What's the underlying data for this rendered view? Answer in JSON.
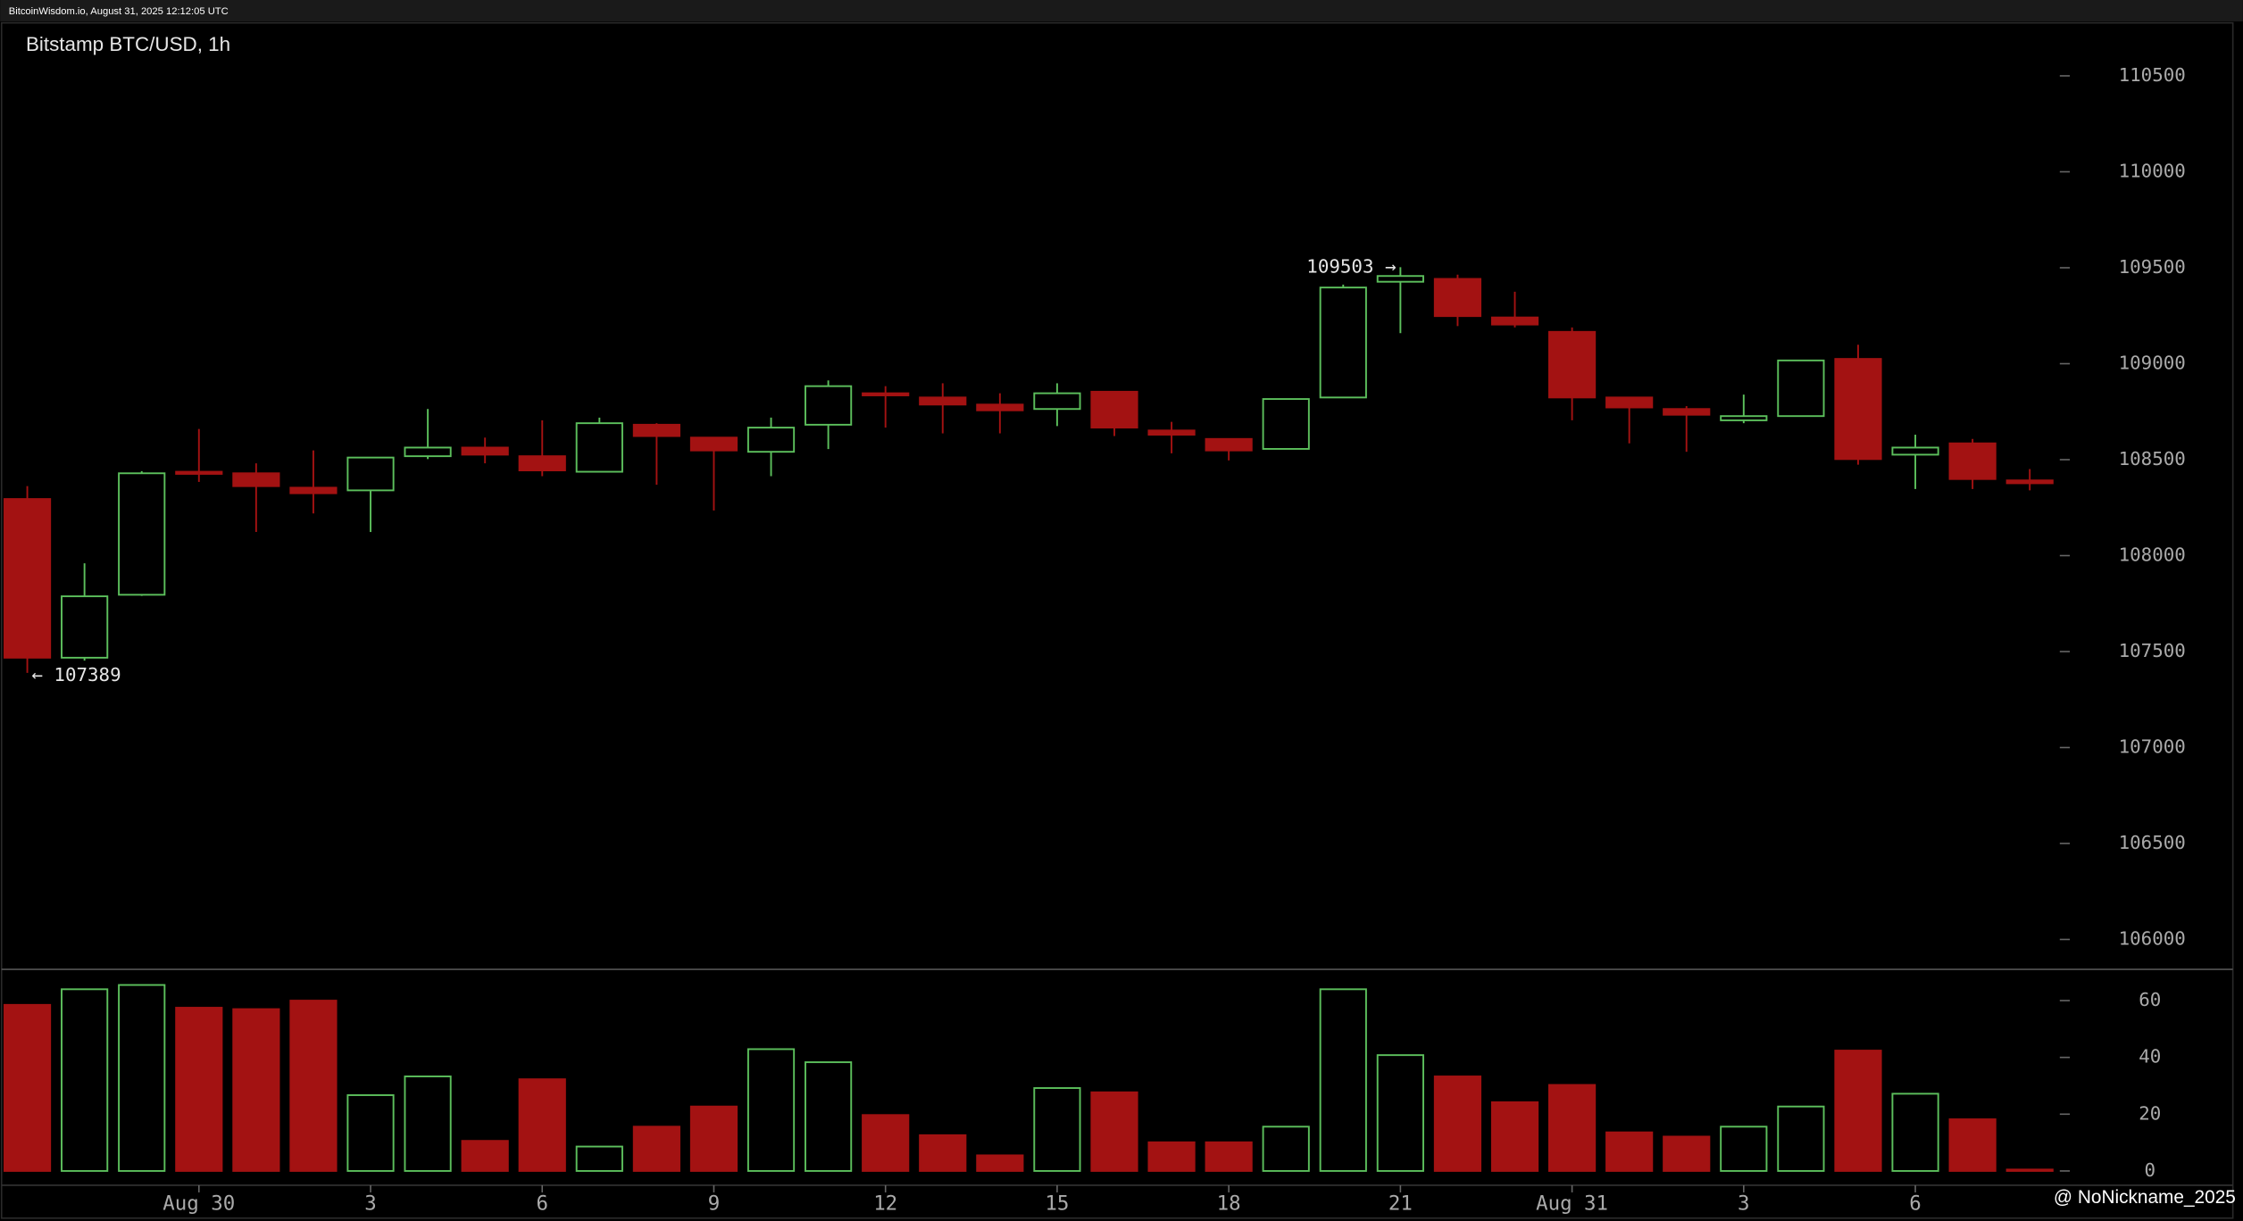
{
  "header": "BitcoinWisdom.io, August 31, 2025 12:12:05 UTC",
  "watermark": "@ NoNickname_2025",
  "chart_data": {
    "type": "candlestick",
    "title": "Bitstamp BTC/USD, 1h",
    "categories": [
      null,
      null,
      null,
      "Aug 30",
      null,
      null,
      "3",
      null,
      null,
      "6",
      null,
      null,
      "9",
      null,
      null,
      "12",
      null,
      null,
      "15",
      null,
      null,
      "18",
      null,
      null,
      "21",
      null,
      null,
      "Aug 31",
      null,
      null,
      "3",
      null,
      null,
      "6",
      null,
      null
    ],
    "open": [
      108295,
      107468,
      107796,
      108437,
      108429,
      108354,
      108340,
      108518,
      108563,
      108518,
      108437,
      108682,
      108615,
      108541,
      108682,
      108846,
      108824,
      108787,
      108764,
      108854,
      108652,
      108608,
      108556,
      108824,
      109427,
      109442,
      109241,
      109166,
      108824,
      108764,
      108705,
      108727,
      109025,
      108526,
      108585,
      108392
    ],
    "high": [
      108362,
      107960,
      108440,
      108660,
      108481,
      108548,
      108511,
      108764,
      108615,
      108705,
      108719,
      108690,
      108615,
      108719,
      108913,
      108883,
      108898,
      108846,
      108898,
      108854,
      108697,
      108608,
      108816,
      109412,
      109503,
      109464,
      109375,
      109189,
      108824,
      108779,
      108839,
      109017,
      109099,
      108630,
      108608,
      108451
    ],
    "low": [
      107389,
      107453,
      107790,
      108384,
      108123,
      108220,
      108123,
      108503,
      108481,
      108414,
      108437,
      108369,
      108235,
      108414,
      108555,
      108667,
      108637,
      108637,
      108675,
      108623,
      108533,
      108496,
      108556,
      108824,
      109159,
      109196,
      109189,
      108705,
      108585,
      108541,
      108690,
      108727,
      108474,
      108347,
      108347,
      108340
    ],
    "close": [
      107468,
      107788,
      108429,
      108430,
      108362,
      108325,
      108511,
      108563,
      108526,
      108444,
      108690,
      108623,
      108548,
      108667,
      108883,
      108839,
      108787,
      108757,
      108846,
      108667,
      108630,
      108548,
      108816,
      109397,
      109457,
      109248,
      109204,
      108824,
      108772,
      108734,
      108727,
      109017,
      108503,
      108563,
      108399,
      108377
    ],
    "volume": [
      58.5,
      64,
      65.5,
      57.5,
      57,
      60,
      26.7,
      33.3,
      10.6,
      32.3,
      8.6,
      15.6,
      22.7,
      42.9,
      38.3,
      19.7,
      12.6,
      5.5,
      29.2,
      27.7,
      10.1,
      10.1,
      15.6,
      64,
      40.8,
      33.3,
      24.2,
      30.3,
      13.6,
      12.1,
      15.6,
      22.7,
      42.4,
      27.2,
      18.2,
      0.5
    ],
    "ylim": [
      105844,
      110776
    ],
    "yticks": [
      106000,
      106500,
      107000,
      107500,
      108000,
      108500,
      109000,
      109500,
      110000,
      110500
    ],
    "volume_ylim": [
      0,
      71
    ],
    "volume_yticks": [
      0,
      20,
      40,
      60
    ],
    "high_label": "109503 →",
    "low_label": "← 107389",
    "up_color": "#5cbf5c",
    "down_color": "#a31212"
  }
}
